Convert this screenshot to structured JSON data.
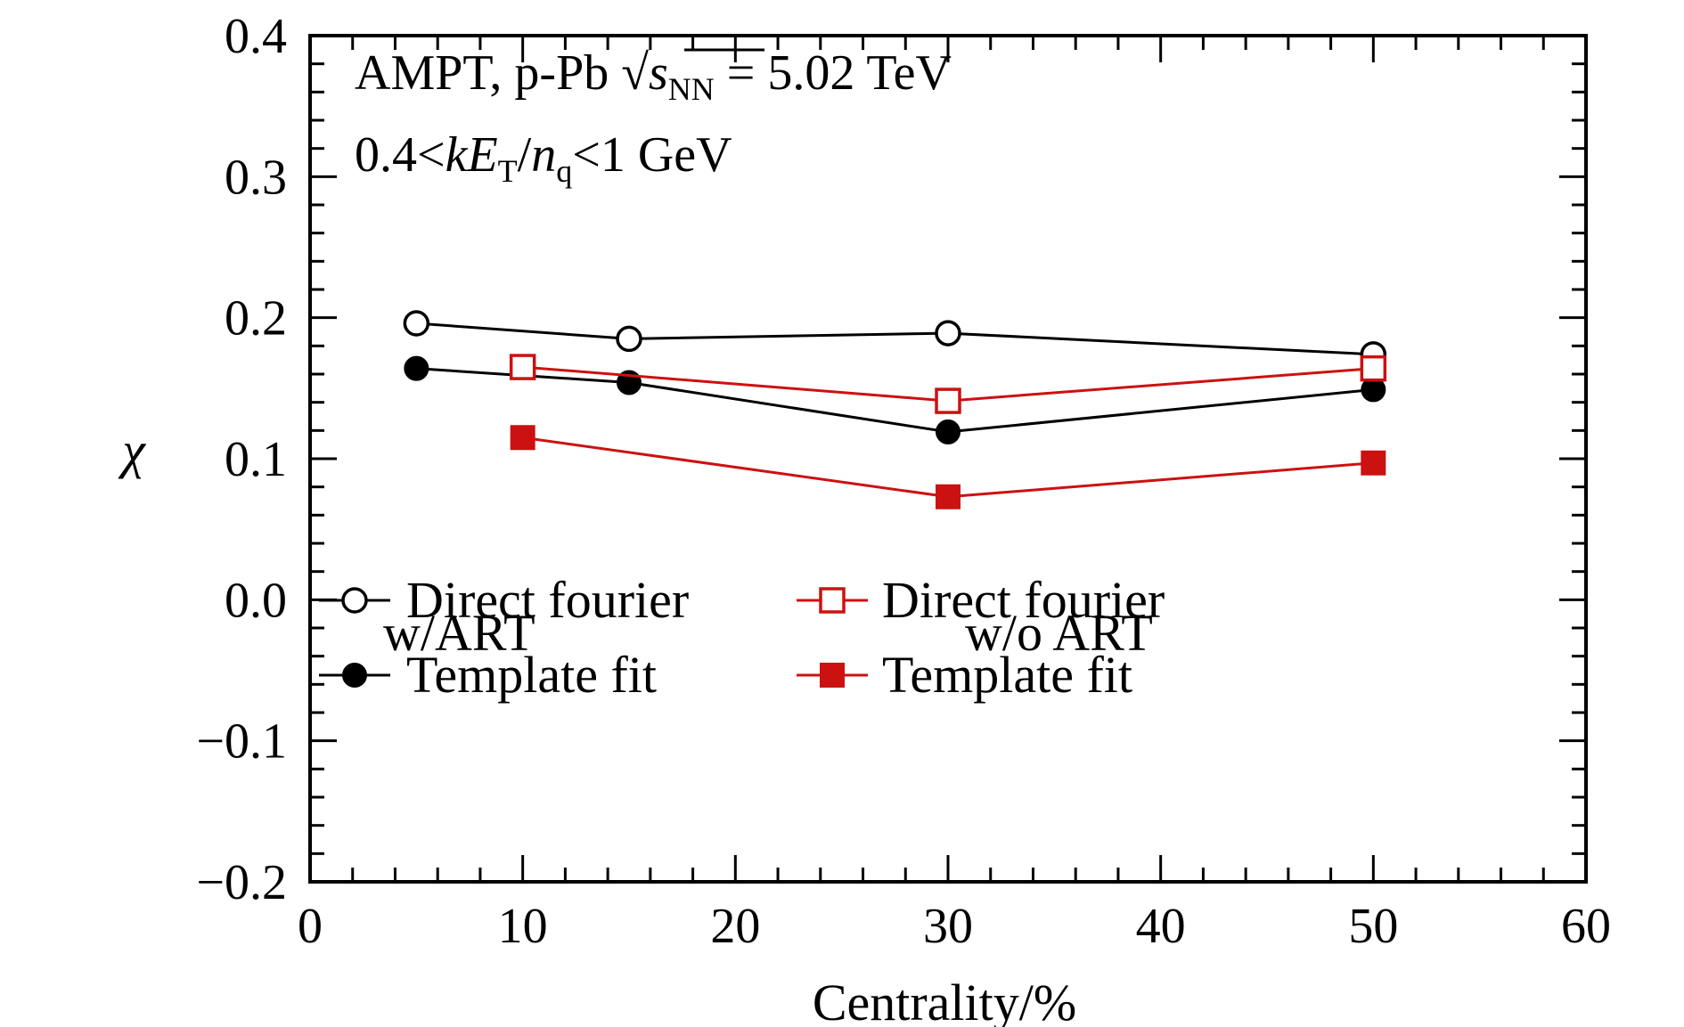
{
  "chart_data": {
    "type": "line",
    "xlabel": "Centrality/%",
    "ylabel": "χ",
    "xlim": [
      0,
      60
    ],
    "ylim": [
      -0.2,
      0.4
    ],
    "x_ticks": [
      "0",
      "10",
      "20",
      "30",
      "40",
      "50",
      "60"
    ],
    "y_ticks": [
      "−0.2",
      "−0.1",
      "0.0",
      "0.1",
      "0.2",
      "0.3",
      "0.4"
    ],
    "x_tick_values": [
      0,
      10,
      20,
      30,
      40,
      50,
      60
    ],
    "y_tick_values": [
      -0.2,
      -0.1,
      0.0,
      0.1,
      0.2,
      0.3,
      0.4
    ],
    "grid": false,
    "annotations": {
      "line1": {
        "prefix": "AMPT, p-Pb ",
        "sqrt_symbol": "√",
        "s": "s",
        "s_sub": "NN",
        "suffix": " = 5.02 TeV"
      },
      "line2": {
        "a": "0.4<",
        "k": "k",
        "E": "E",
        "E_sub": "T",
        "slash": "/",
        "n": "n",
        "n_sub": "q",
        "b": "<1 GeV"
      }
    },
    "legend": {
      "placement": "bottom",
      "group_titles": [
        "w/ART",
        "w/o ART"
      ]
    },
    "series": [
      {
        "name": "Direct fourier",
        "group": "w/ART",
        "color": "#000000",
        "marker": "open-circle",
        "x": [
          5,
          15,
          30,
          50
        ],
        "y": [
          0.196,
          0.185,
          0.189,
          0.174
        ]
      },
      {
        "name": "Template fit",
        "group": "w/ART",
        "color": "#000000",
        "marker": "filled-circle",
        "x": [
          5,
          15,
          30,
          50
        ],
        "y": [
          0.164,
          0.154,
          0.119,
          0.149
        ]
      },
      {
        "name": "Direct fourier",
        "group": "w/o ART",
        "color": "#cc1111",
        "marker": "open-square",
        "x": [
          10,
          30,
          50
        ],
        "y": [
          0.165,
          0.141,
          0.164
        ]
      },
      {
        "name": "Template fit",
        "group": "w/o ART",
        "color": "#cc1111",
        "marker": "filled-square",
        "x": [
          10,
          30,
          50
        ],
        "y": [
          0.115,
          0.073,
          0.097
        ]
      }
    ]
  }
}
